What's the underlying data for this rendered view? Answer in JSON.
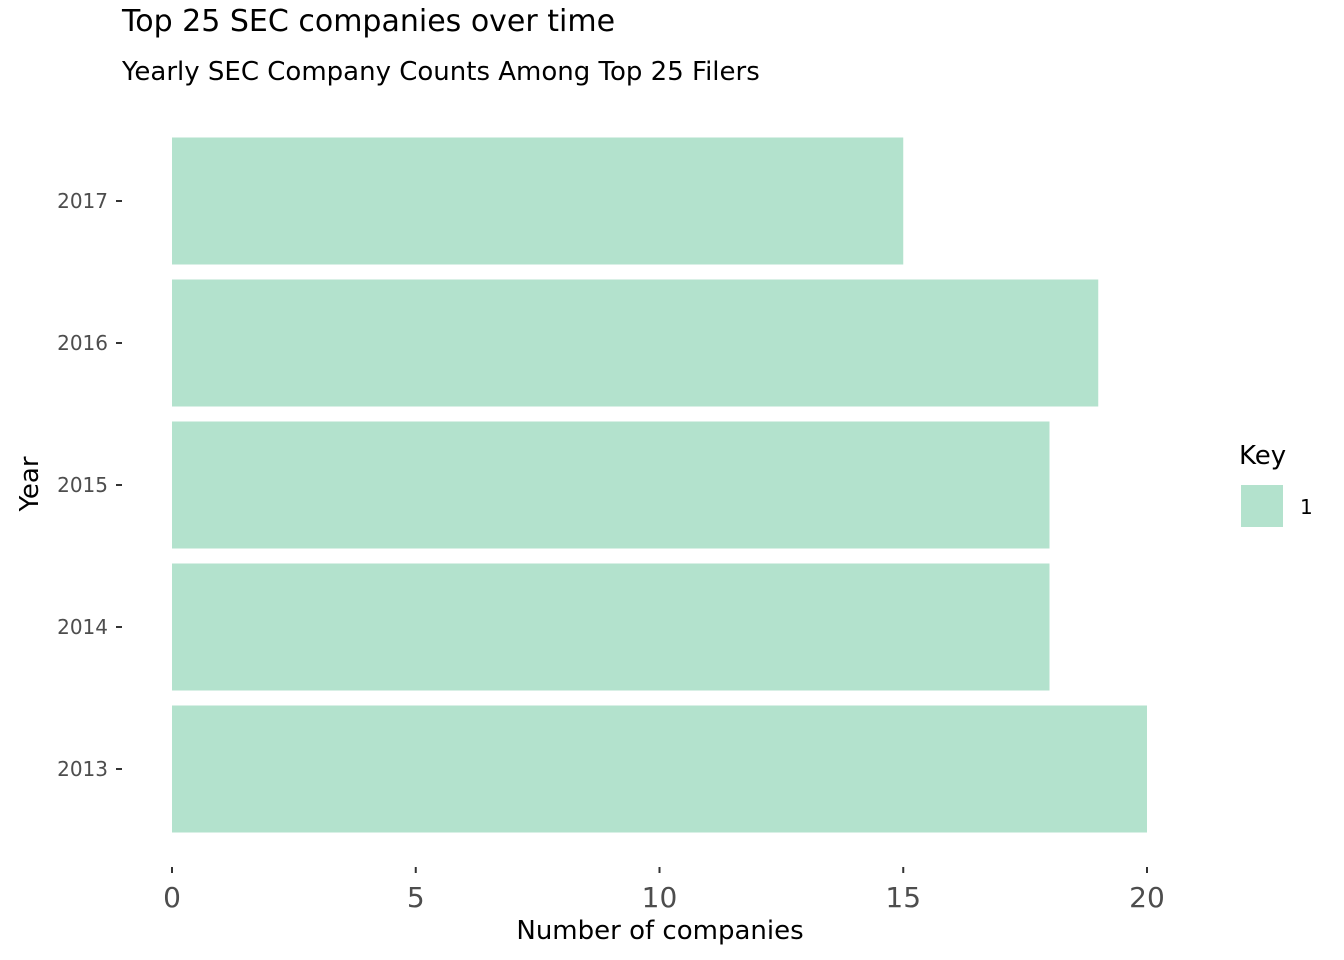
{
  "chart_data": {
    "type": "bar",
    "orientation": "horizontal",
    "title": "Top 25 SEC companies over time",
    "subtitle": "Yearly SEC Company Counts Among Top 25 Filers",
    "xlabel": "Number of companies",
    "ylabel": "Year",
    "categories": [
      "2013",
      "2014",
      "2015",
      "2016",
      "2017"
    ],
    "series": [
      {
        "name": "1",
        "values": [
          20,
          18,
          18,
          19,
          15
        ]
      }
    ],
    "xlim": [
      0,
      22.5
    ],
    "xticks": [
      "0",
      "5",
      "10",
      "15",
      "20"
    ],
    "grid": false,
    "legend": {
      "title": "Key",
      "position": "right",
      "entries": [
        "1"
      ]
    },
    "colors": {
      "bar": "#b3e2cd"
    }
  }
}
